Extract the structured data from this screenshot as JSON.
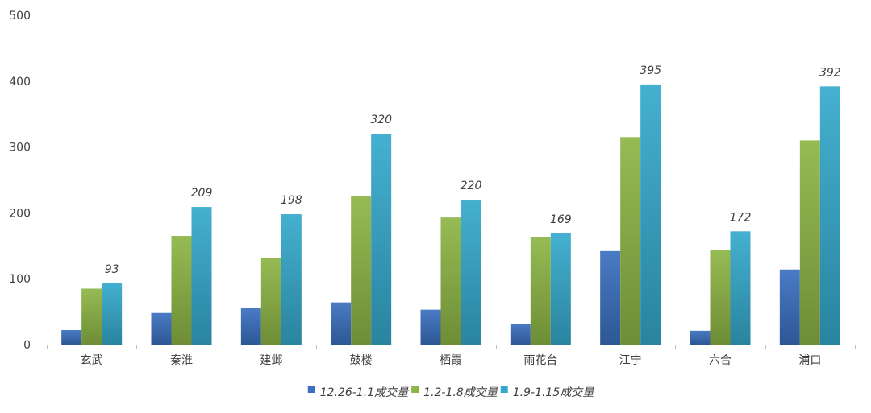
{
  "chart_data": {
    "type": "bar",
    "categories": [
      "玄武",
      "秦淮",
      "建邺",
      "鼓楼",
      "栖霞",
      "雨花台",
      "江宁",
      "六合",
      "浦口"
    ],
    "series": [
      {
        "name": "12.26-1.1成交量",
        "values": [
          22,
          48,
          55,
          64,
          53,
          31,
          142,
          21,
          114
        ],
        "color": "#3a70bf"
      },
      {
        "name": "1.2-1.8成交量",
        "values": [
          85,
          165,
          132,
          225,
          193,
          163,
          315,
          143,
          310
        ],
        "color": "#8db545"
      },
      {
        "name": "1.9-1.15成交量",
        "values": [
          93,
          209,
          198,
          320,
          220,
          169,
          395,
          172,
          392
        ],
        "color": "#35a9cc"
      }
    ],
    "data_labels_series": 2,
    "ylim": [
      0,
      500
    ],
    "yticks": [
      0,
      100,
      200,
      300,
      400,
      500
    ],
    "grid": false,
    "legend_position": "bottom",
    "title": "",
    "xlabel": "",
    "ylabel": ""
  }
}
